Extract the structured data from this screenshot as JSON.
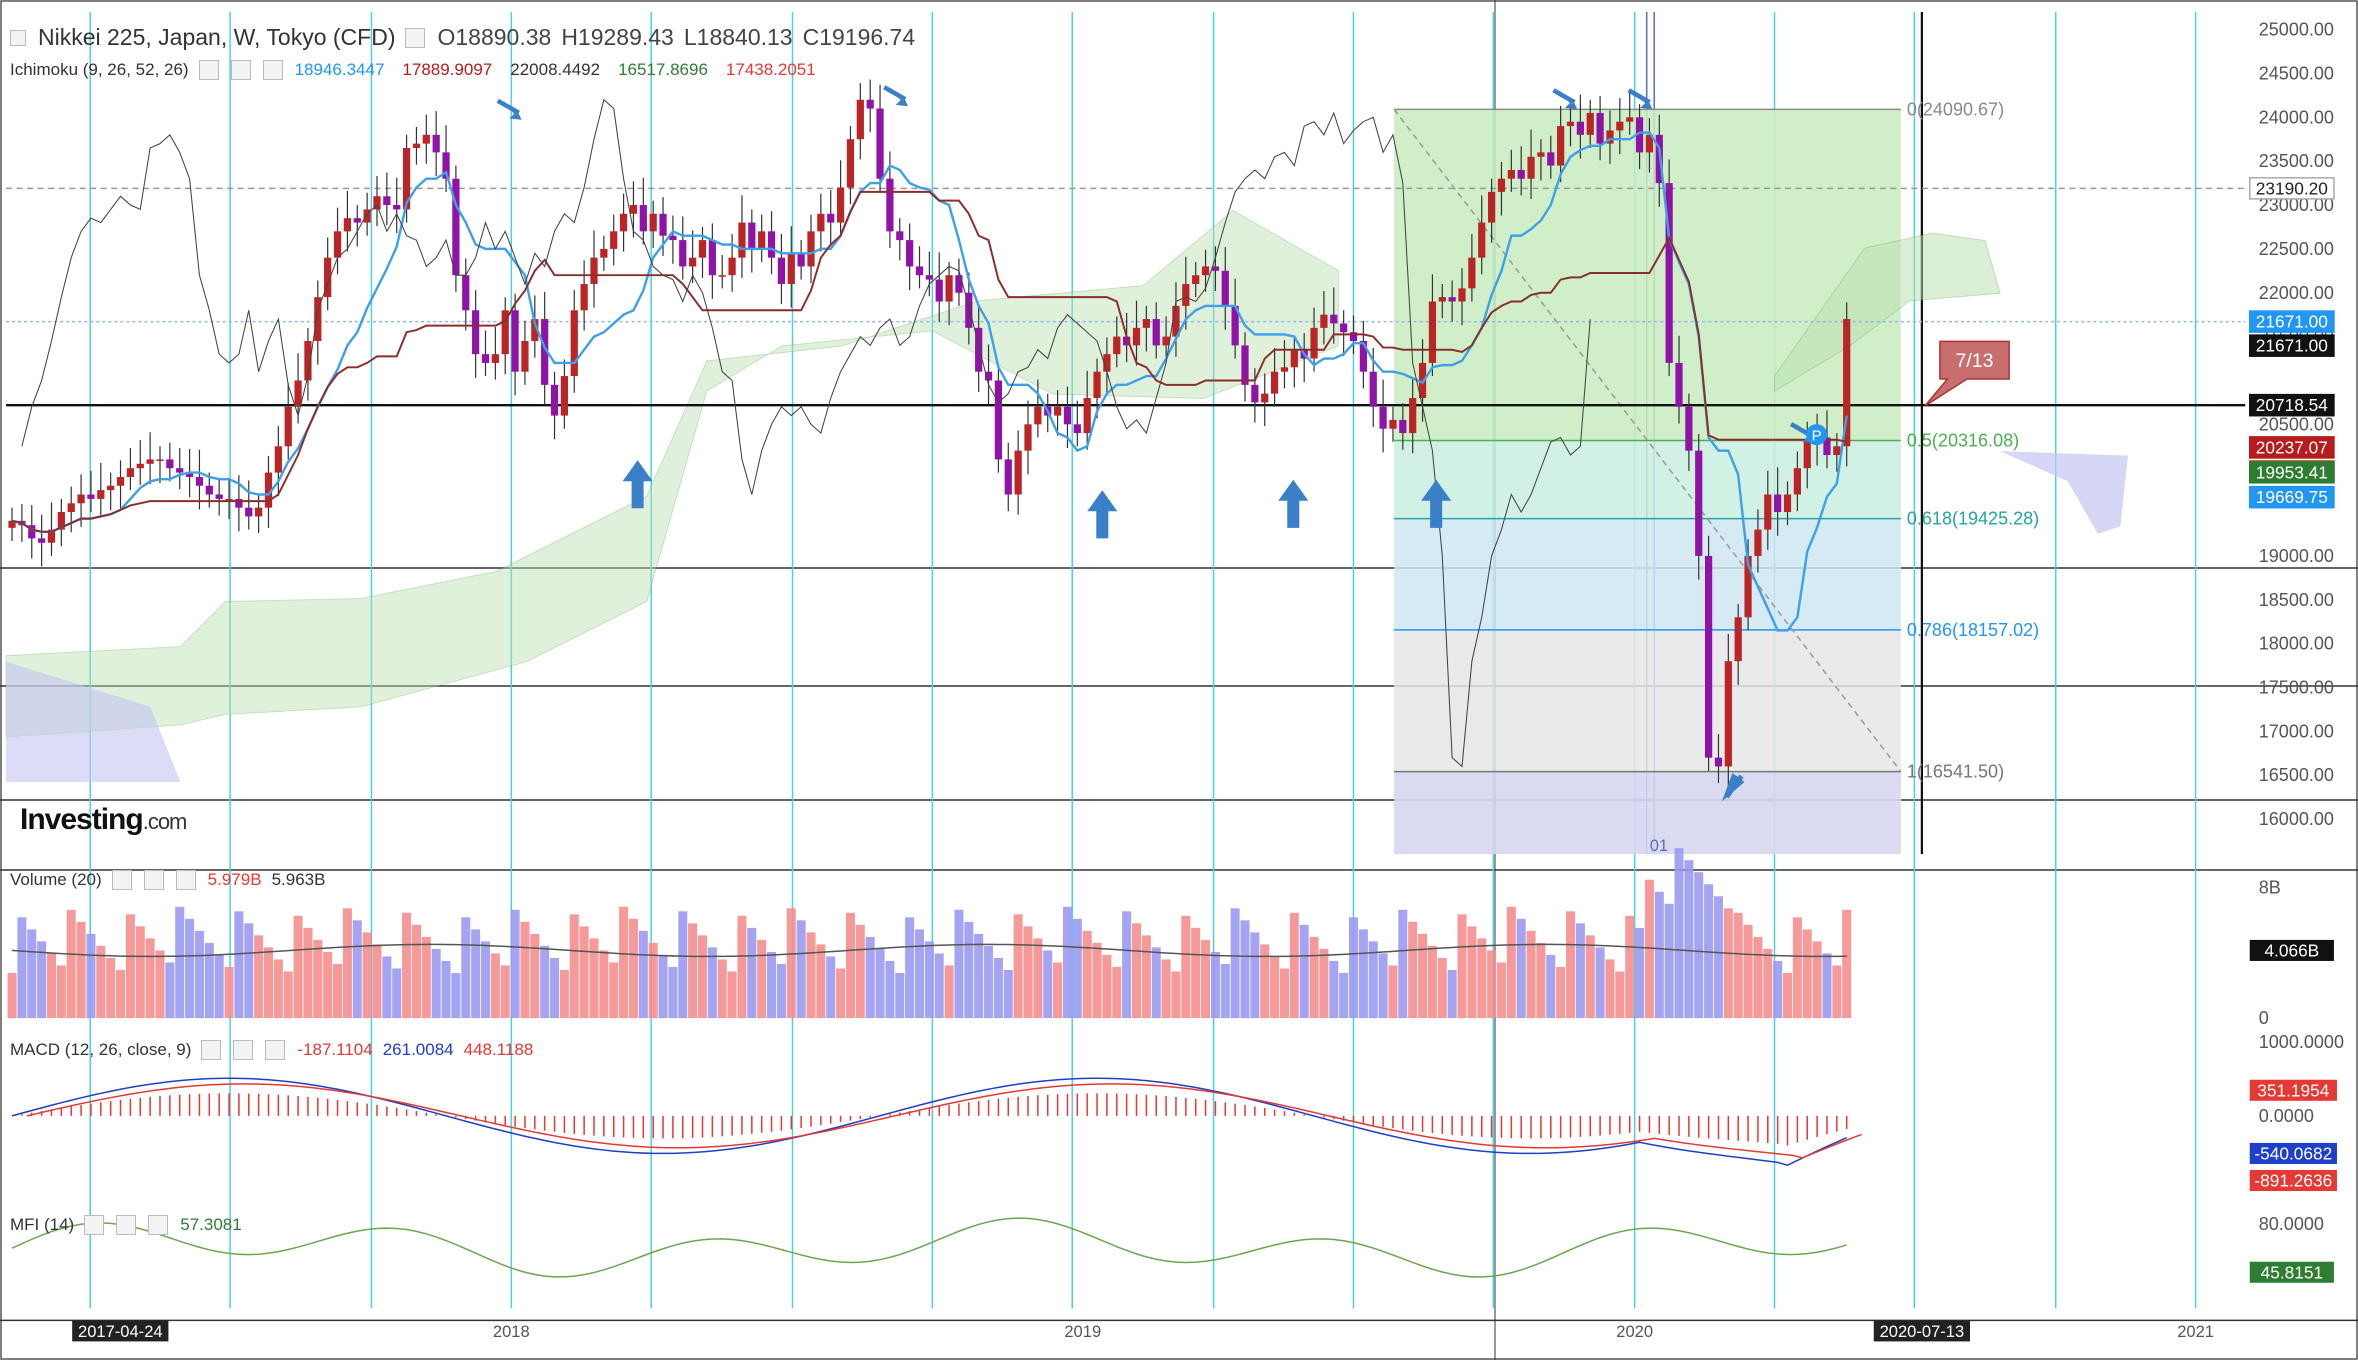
{
  "header": {
    "title": "Nikkei 225, Japan, W, Tokyo (CFD)",
    "open": "O18890.38",
    "high": "H19289.43",
    "low": "L18840.13",
    "close": "C19196.74"
  },
  "ichimoku": {
    "label": "Ichimoku (9, 26, 52, 26)",
    "values": [
      {
        "v": "18946.3447",
        "color": "#2196f3"
      },
      {
        "v": "17889.9097",
        "color": "#b71c1c"
      },
      {
        "v": "22008.4492",
        "color": "#333333"
      },
      {
        "v": "16517.8696",
        "color": "#2e7d32"
      },
      {
        "v": "17438.2051",
        "color": "#e53935"
      }
    ]
  },
  "volume": {
    "label": "Volume (20)",
    "v1": "5.979B",
    "v2": "5.963B",
    "axis": [
      "8B",
      "4.066B",
      "0"
    ]
  },
  "macd": {
    "label": "MACD (12, 26, close, 9)",
    "v1": "-187.1104",
    "v2": "261.0084",
    "v3": "448.1188",
    "axis": [
      "1000.0000",
      "0.0000"
    ],
    "badges": [
      "351.1954",
      "-540.0682",
      "-891.2636"
    ]
  },
  "mfi": {
    "label": "MFI (14)",
    "v1": "57.3081",
    "axis": [
      "80.0000"
    ],
    "badge": "45.8151"
  },
  "logo": {
    "main": "Investing",
    "suffix": ".com"
  },
  "annotation": {
    "callout": "7/13",
    "marker": "P",
    "cursor_label": "01"
  },
  "price_axis": [
    "25000.00",
    "24500.00",
    "24000.00",
    "23500.00",
    "23000.00",
    "22500.00",
    "22000.00",
    "21500.00",
    "20500.00",
    "20000.00",
    "19000.00",
    "18500.00",
    "18000.00",
    "17500.00",
    "17000.00",
    "16500.00",
    "16000.00"
  ],
  "price_badges": [
    {
      "v": "23190.20",
      "color": "#ffffff",
      "text": "#222222",
      "price": 23190.2
    },
    {
      "v": "21671.00",
      "color": "#2196f3",
      "text": "#ffffff",
      "price": 21671
    },
    {
      "v": "21671.00",
      "color": "#111111",
      "text": "#ffffff",
      "price": 21671
    },
    {
      "v": "20718.54",
      "color": "#111111",
      "text": "#ffffff",
      "price": 20718.54
    },
    {
      "v": "20237.07",
      "color": "#b71c1c",
      "text": "#ffffff",
      "price": 20237.07
    },
    {
      "v": "20237.07",
      "color": "#e53935",
      "text": "#ffffff",
      "price": 20237.07
    },
    {
      "v": "19953.41",
      "color": "#2e7d32",
      "text": "#ffffff",
      "price": 19953.41
    },
    {
      "v": "19669.75",
      "color": "#2196f3",
      "text": "#ffffff",
      "price": 19669.75
    }
  ],
  "time_axis": [
    "2017-04-24",
    "2018",
    "2019",
    "2020",
    "2020-07-13",
    "2021"
  ],
  "chart_data": {
    "type": "candlestick",
    "title": "Nikkei 225, Japan, W, Tokyo (CFD)",
    "fib_levels": [
      {
        "label": "0(24090.67)",
        "price": 24090.67,
        "color": "#8a8a8a"
      },
      {
        "label": "0.5(20316.08)",
        "price": 20316.08,
        "color": "#4caf50"
      },
      {
        "label": "0.618(19425.28)",
        "price": 19425.28,
        "color": "#26a69a"
      },
      {
        "label": "0.786(18157.02)",
        "price": 18157.02,
        "color": "#2196f3"
      },
      {
        "label": "1(16541.50)",
        "price": 16541.5,
        "color": "#777777"
      }
    ],
    "horizontal_line": 20718.54,
    "dashed_line": 23190.2,
    "price_range": [
      15600,
      25200
    ],
    "weekly_close": [
      19400,
      19350,
      19200,
      19150,
      19300,
      19500,
      19600,
      19700,
      19650,
      19750,
      19800,
      19900,
      20000,
      20050,
      20100,
      20100,
      20000,
      19950,
      19900,
      19800,
      19700,
      19650,
      19650,
      19550,
      19450,
      19550,
      19950,
      20250,
      20700,
      21000,
      21450,
      21950,
      22400,
      22700,
      22850,
      22800,
      22950,
      23100,
      23000,
      22950,
      23650,
      23700,
      23800,
      23600,
      23300,
      22200,
      21800,
      21300,
      21200,
      21300,
      21800,
      21100,
      21450,
      21700,
      20950,
      20600,
      21050,
      21800,
      22100,
      22400,
      22500,
      22700,
      22900,
      23000,
      22700,
      22900,
      22650,
      22600,
      22300,
      22400,
      22600,
      22200,
      22200,
      22400,
      22800,
      22500,
      22700,
      22400,
      22100,
      22450,
      22300,
      22700,
      22900,
      22800,
      23200,
      23750,
      24200,
      24100,
      23300,
      22700,
      22600,
      22300,
      22200,
      22150,
      21900,
      22200,
      22000,
      21600,
      21100,
      21000,
      20100,
      19700,
      20200,
      20500,
      20700,
      20600,
      20700,
      20500,
      20400,
      20800,
      21100,
      21300,
      21500,
      21400,
      21600,
      21700,
      21400,
      21500,
      21850,
      22100,
      22200,
      22300,
      22250,
      21850,
      21400,
      20950,
      20750,
      20850,
      21100,
      21150,
      21350,
      21250,
      21600,
      21750,
      21650,
      21550,
      21450,
      21100,
      20700,
      20450,
      20550,
      20400,
      20800,
      21200,
      21900,
      21950,
      21900,
      22050,
      22400,
      22800,
      23150,
      23300,
      23400,
      23300,
      23550,
      23600,
      23450,
      23900,
      23950,
      23800,
      24050,
      23700,
      23850,
      23950,
      24000,
      23600,
      23800,
      23250,
      21200,
      20700,
      20200,
      19000,
      16700,
      16600,
      17800,
      18300,
      19000,
      19300,
      19700,
      19500,
      19700,
      20000,
      20300,
      20350,
      20150,
      20250,
      21700
    ],
    "candle_dates": [
      "2017-04-24",
      "2020-07-13"
    ],
    "volume_note": "weekly volume bars, moving average 4.066B",
    "macd_range": [
      -1000,
      1000
    ],
    "mfi_level": 45.8151
  }
}
